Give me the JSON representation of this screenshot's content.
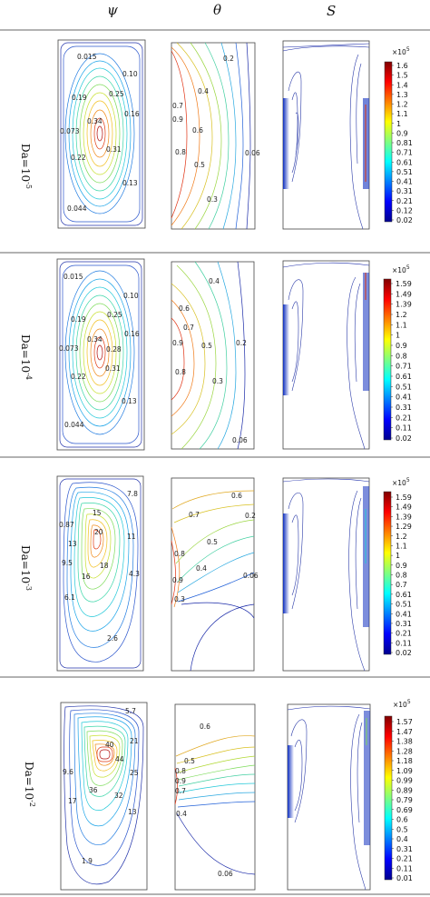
{
  "headers": {
    "psi": "ψ",
    "theta": "θ",
    "s": "S"
  },
  "rows": [
    {
      "da": "Da=10",
      "da_exp": "-5",
      "psi_labels": [
        "0.015",
        "0.10",
        "0.19",
        "0.25",
        "0.34",
        "0.16",
        "0.073",
        "0.31",
        "0.22",
        "0.13",
        "0.044"
      ],
      "theta_labels": [
        "0.2",
        "0.4",
        "0.7",
        "0.9",
        "0.6",
        "0.8",
        "0.5",
        "0.06",
        "0.3"
      ],
      "cb_exp": "×10",
      "cb_exp_sup": "5",
      "cb_ticks": [
        "1.6",
        "1.5",
        "1.4",
        "1.3",
        "1.2",
        "1.1",
        "1",
        "0.9",
        "0.81",
        "0.71",
        "0.61",
        "0.51",
        "0.41",
        "0.31",
        "0.21",
        "0.12",
        "0.02"
      ]
    },
    {
      "da": "Da=10",
      "da_exp": "-4",
      "psi_labels": [
        "0.015",
        "0.10",
        "0.19",
        "0.25",
        "0.34",
        "0.16",
        "0.073",
        "0.28",
        "0.31",
        "0.22",
        "0.13",
        "0.044"
      ],
      "theta_labels": [
        "0.4",
        "0.6",
        "0.7",
        "0.9",
        "0.5",
        "0.2",
        "0.8",
        "0.3",
        "0.06"
      ],
      "cb_exp": "×10",
      "cb_exp_sup": "5",
      "cb_ticks": [
        "1.59",
        "1.49",
        "1.39",
        "1.2",
        "1.1",
        "1",
        "0.9",
        "0.8",
        "0.71",
        "0.61",
        "0.51",
        "0.41",
        "0.31",
        "0.21",
        "0.11",
        "0.02"
      ]
    },
    {
      "da": "Da=10",
      "da_exp": "-3",
      "psi_labels": [
        "7.8",
        "0.87",
        "15",
        "20",
        "13",
        "11",
        "9.5",
        "18",
        "16",
        "4.3",
        "6.1",
        "2.6"
      ],
      "theta_labels": [
        "0.6",
        "0.2",
        "0.7",
        "0.5",
        "0.8",
        "0.4",
        "0.9",
        "0.06",
        "0.3"
      ],
      "cb_exp": "×10",
      "cb_exp_sup": "5",
      "cb_ticks": [
        "1.59",
        "1.49",
        "1.39",
        "1.29",
        "1.2",
        "1.1",
        "1",
        "0.9",
        "0.8",
        "0.7",
        "0.61",
        "0.51",
        "0.41",
        "0.31",
        "0.21",
        "0.11",
        "0.02"
      ]
    },
    {
      "da": "Da=10",
      "da_exp": "-2",
      "psi_labels": [
        "5.7",
        "40",
        "21",
        "9.6",
        "44",
        "25",
        "17",
        "36",
        "32",
        "13",
        "1.9"
      ],
      "theta_labels": [
        "0.6",
        "0.5",
        "0.8",
        "0.9",
        "0.7",
        "0.4",
        "0.06"
      ],
      "cb_exp": "×10",
      "cb_exp_sup": "5",
      "cb_ticks": [
        "1.57",
        "1.47",
        "1.38",
        "1.28",
        "1.18",
        "1.09",
        "0.99",
        "0.89",
        "0.79",
        "0.69",
        "0.6",
        "0.5",
        "0.4",
        "0.31",
        "0.21",
        "0.11",
        "0.01"
      ]
    }
  ]
}
